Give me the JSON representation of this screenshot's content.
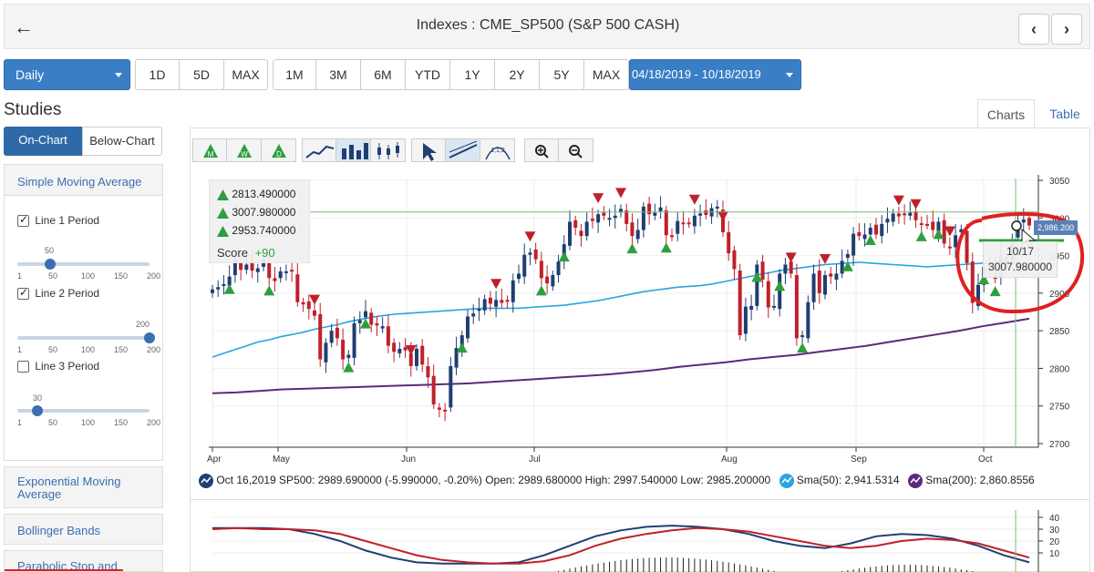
{
  "header": {
    "title": "Indexes : CME_SP500 (S&P 500 CASH)",
    "back_icon": "←",
    "prev_icon": "‹",
    "next_icon": "›"
  },
  "period": {
    "interval": "Daily",
    "short_ranges": [
      "1D",
      "5D",
      "MAX"
    ],
    "ranges": [
      "1M",
      "3M",
      "6M",
      "YTD",
      "1Y",
      "2Y",
      "5Y",
      "MAX"
    ],
    "date_range": "04/18/2019 - 10/18/2019"
  },
  "tabs": {
    "charts": "Charts",
    "table": "Table"
  },
  "studies": {
    "title": "Studies",
    "on_chart": "On-Chart",
    "below_chart": "Below-Chart",
    "sma": {
      "title": "Simple Moving Average",
      "lines": [
        {
          "label": "Line 1 Period",
          "checked": true,
          "value": "50",
          "fraction": 0.25
        },
        {
          "label": "Line 2 Period",
          "checked": true,
          "value": "200",
          "fraction": 1.0
        },
        {
          "label": "Line 3 Period",
          "checked": false,
          "value": "30",
          "fraction": 0.15
        }
      ],
      "ticks": [
        "1",
        "50",
        "100",
        "150",
        "200"
      ]
    },
    "others": [
      "Exponential Moving Average",
      "Bollinger Bands",
      "Parabolic Stop and"
    ]
  },
  "toolbar": {
    "icons": [
      "m-signal-icon",
      "w-signal-icon",
      "d-signal-icon",
      "line-chart-icon",
      "bar-chart-icon",
      "candlestick-icon",
      "pointer-icon",
      "trendline-icon",
      "fibonacci-icon",
      "zoom-in-icon",
      "zoom-out-icon"
    ]
  },
  "scores": {
    "rows": [
      {
        "letter": "M",
        "value": "2813.490000"
      },
      {
        "letter": "W",
        "value": "3007.980000"
      },
      {
        "letter": "D",
        "value": "2953.740000"
      }
    ],
    "score_label": "Score",
    "score_value": "+90"
  },
  "tooltip": {
    "date": "10/17",
    "value": "3007.980000",
    "price_flag": "2,986.200"
  },
  "legend": {
    "quote": "Oct 16,2019 SP500: 2989.690000 (-5.990000, -0.20%) Open: 2989.680000 High: 2997.540000 Low: 2985.200000",
    "sma50": "Sma(50): 2,941.5314",
    "sma200": "Sma(200): 2,860.8556"
  },
  "colors": {
    "accent": "#3a7fc6",
    "up": "#1f3f73",
    "down": "#c0202a",
    "sma50": "#29a5dd",
    "sma200": "#5b2a7a",
    "green_signal": "#2e9e3e",
    "red_signal": "#c0202a",
    "annotation": "#e02020"
  },
  "chart_data": {
    "type": "candlestick",
    "x_labels": [
      "Apr",
      "May",
      "Jun",
      "Jul",
      "Aug",
      "Sep",
      "Oct"
    ],
    "y_ticks": [
      "3050",
      "3000",
      "2950",
      "2900",
      "2850",
      "2800",
      "2750",
      "2700"
    ],
    "ylim": [
      2700,
      3050
    ],
    "close": [
      2905,
      2908,
      2912,
      2922,
      2945,
      2931,
      2938,
      2930,
      2933,
      2945,
      2920,
      2916,
      2929,
      2929,
      2929,
      2888,
      2885,
      2879,
      2870,
      2812,
      2834,
      2850,
      2840,
      2812,
      2818,
      2860,
      2864,
      2876,
      2858,
      2857,
      2856,
      2830,
      2822,
      2826,
      2824,
      2803,
      2826,
      2805,
      2788,
      2752,
      2745,
      2744,
      2803,
      2827,
      2844,
      2869,
      2873,
      2879,
      2892,
      2886,
      2891,
      2887,
      2890,
      2917,
      2926,
      2951,
      2954,
      2945,
      2920,
      2913,
      2924,
      2942,
      2965,
      2995,
      2987,
      2976,
      2995,
      2996,
      3005,
      3003,
      3000,
      3003,
      3012,
      2992,
      2976,
      2984,
      3015,
      3005,
      3007,
      3014,
      2977,
      2975,
      2996,
      2992,
      2993,
      3003,
      3006,
      3004,
      3013,
      3015,
      2981,
      2953,
      2932,
      2844,
      2882,
      2883,
      2938,
      2918,
      2881,
      2883,
      2926,
      2938,
      2926,
      2840,
      2844,
      2888,
      2926,
      2900,
      2924,
      2922,
      2926,
      2943,
      2952,
      2979,
      2976,
      2978,
      2987,
      2978,
      2992,
      2999,
      3006,
      3002,
      3005,
      3007,
      2997,
      2992,
      2991,
      2984,
      2995,
      2966,
      2961,
      2977,
      2985,
      2940,
      2887,
      2911,
      2935,
      2939,
      2919,
      2952,
      2938,
      2970,
      2996,
      2998,
      2990
    ],
    "sma50": [
      2815,
      2820,
      2825,
      2830,
      2835,
      2838,
      2842,
      2845,
      2848,
      2852,
      2855,
      2858,
      2862,
      2865,
      2868,
      2870,
      2872,
      2873,
      2874,
      2875,
      2876,
      2877,
      2878,
      2879,
      2880,
      2880,
      2880,
      2880,
      2881,
      2882,
      2883,
      2884,
      2886,
      2888,
      2890,
      2893,
      2896,
      2899,
      2902,
      2904,
      2906,
      2908,
      2909,
      2910,
      2912,
      2915,
      2918,
      2921,
      2924,
      2927,
      2930,
      2932,
      2934,
      2936,
      2938,
      2939,
      2940,
      2941,
      2940,
      2939,
      2938,
      2937,
      2936,
      2935,
      2936,
      2937,
      2938,
      2939,
      2940,
      2940,
      2941,
      2941,
      2941
    ],
    "sma200": [
      2767,
      2768,
      2770,
      2772,
      2773,
      2774,
      2775,
      2776,
      2777,
      2778,
      2779,
      2780,
      2782,
      2784,
      2786,
      2788,
      2790,
      2792,
      2795,
      2798,
      2802,
      2805,
      2808,
      2812,
      2815,
      2818,
      2822,
      2826,
      2830,
      2835,
      2840,
      2845,
      2850,
      2856,
      2861,
      2866
    ]
  }
}
